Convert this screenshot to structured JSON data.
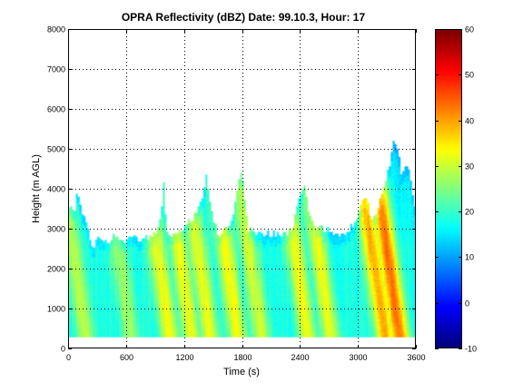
{
  "chart_data": {
    "type": "heatmap",
    "title": "OPRA Reflectivity (dBZ)  Date: 99.10.3, Hour: 17",
    "xlabel": "Time (s)",
    "ylabel": "Height (m AGL)",
    "xlim": [
      0,
      3600
    ],
    "ylim": [
      0,
      8000
    ],
    "xticks": [
      0,
      600,
      1200,
      1800,
      2400,
      3000,
      3600
    ],
    "yticks": [
      0,
      1000,
      2000,
      3000,
      4000,
      5000,
      6000,
      7000,
      8000
    ],
    "grid": true,
    "colorbar": {
      "min": -10,
      "max": 60,
      "ticks": [
        -10,
        0,
        10,
        20,
        30,
        40,
        50,
        60
      ],
      "colormap": "jet"
    },
    "echo_base_m": 300,
    "echo_top_m": [
      [
        0,
        3700
      ],
      [
        60,
        3300
      ],
      [
        100,
        4000
      ],
      [
        140,
        3500
      ],
      [
        200,
        3000
      ],
      [
        250,
        2500
      ],
      [
        300,
        2800
      ],
      [
        380,
        2600
      ],
      [
        460,
        2800
      ],
      [
        560,
        2700
      ],
      [
        650,
        2800
      ],
      [
        740,
        2700
      ],
      [
        820,
        2800
      ],
      [
        900,
        2900
      ],
      [
        960,
        3200
      ],
      [
        990,
        4100
      ],
      [
        1020,
        3000
      ],
      [
        1100,
        2800
      ],
      [
        1200,
        3000
      ],
      [
        1300,
        3300
      ],
      [
        1380,
        3700
      ],
      [
        1430,
        4300
      ],
      [
        1470,
        3700
      ],
      [
        1500,
        3200
      ],
      [
        1560,
        2900
      ],
      [
        1650,
        3000
      ],
      [
        1730,
        3600
      ],
      [
        1770,
        4200
      ],
      [
        1800,
        4400
      ],
      [
        1830,
        3800
      ],
      [
        1870,
        3000
      ],
      [
        1950,
        2800
      ],
      [
        2050,
        2900
      ],
      [
        2150,
        2900
      ],
      [
        2250,
        2900
      ],
      [
        2330,
        3100
      ],
      [
        2400,
        3800
      ],
      [
        2450,
        4000
      ],
      [
        2500,
        3400
      ],
      [
        2560,
        3000
      ],
      [
        2650,
        3000
      ],
      [
        2760,
        2900
      ],
      [
        2860,
        2900
      ],
      [
        2960,
        3100
      ],
      [
        3020,
        3400
      ],
      [
        3080,
        3900
      ],
      [
        3140,
        3300
      ],
      [
        3200,
        3400
      ],
      [
        3280,
        4100
      ],
      [
        3330,
        4600
      ],
      [
        3380,
        5300
      ],
      [
        3420,
        4900
      ],
      [
        3460,
        4300
      ],
      [
        3500,
        4600
      ],
      [
        3540,
        4300
      ],
      [
        3580,
        3700
      ],
      [
        3600,
        3500
      ]
    ],
    "reflectivity_bands_dBZ": [
      {
        "t": 180,
        "peak": 29
      },
      {
        "t": 650,
        "peak": 27
      },
      {
        "t": 1050,
        "peak": 33
      },
      {
        "t": 1280,
        "peak": 32
      },
      {
        "t": 1470,
        "peak": 32
      },
      {
        "t": 1760,
        "peak": 33
      },
      {
        "t": 2000,
        "peak": 31
      },
      {
        "t": 2480,
        "peak": 33
      },
      {
        "t": 2720,
        "peak": 33
      },
      {
        "t": 3280,
        "peak": 40
      },
      {
        "t": 3430,
        "peak": 44
      }
    ]
  }
}
